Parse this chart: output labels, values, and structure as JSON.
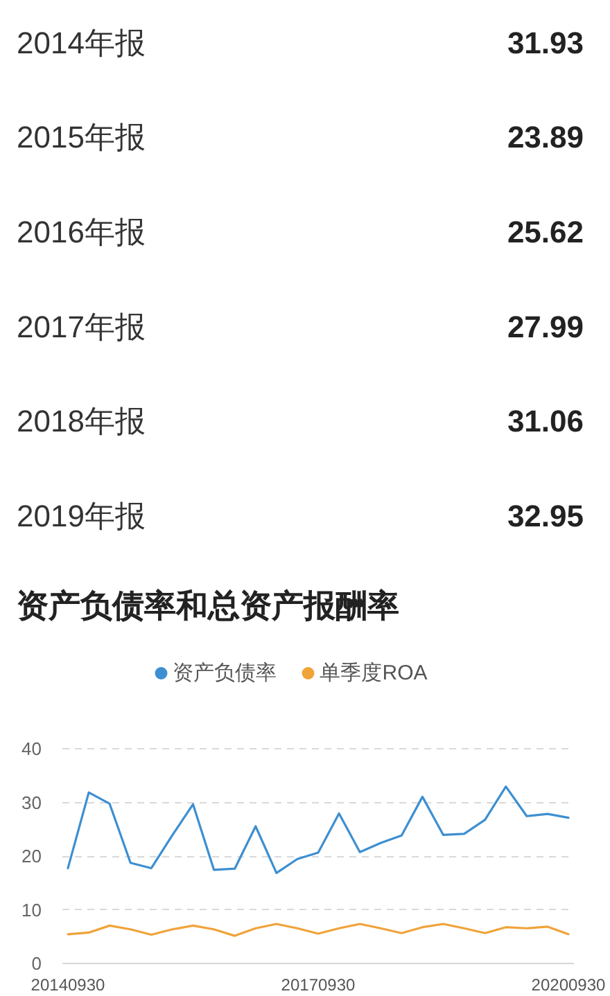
{
  "chart_data": {
    "type": "line",
    "title": "资产负债率和总资产报酬率",
    "annotations": [
      "2014年报",
      "31.93",
      "2015年报",
      "23.89",
      "2016年报",
      "25.62",
      "2017年报",
      "27.99",
      "2018年报",
      "31.06",
      "2019年报",
      "32.95"
    ],
    "categories": [
      "20140930",
      null,
      null,
      null,
      null,
      null,
      null,
      null,
      null,
      null,
      null,
      null,
      "20170930",
      null,
      null,
      null,
      null,
      null,
      null,
      null,
      null,
      null,
      null,
      null,
      "20200930"
    ],
    "series": [
      {
        "name": "资产负债率",
        "color": "#3d8fd1",
        "values": [
          17.8,
          31.9,
          29.8,
          18.8,
          17.8,
          23.9,
          29.7,
          17.5,
          17.7,
          25.6,
          16.9,
          19.5,
          20.7,
          28.0,
          20.8,
          22.5,
          23.9,
          31.1,
          24.0,
          24.2,
          26.8,
          33.0,
          27.5,
          27.9,
          27.2
        ]
      },
      {
        "name": "单季度ROA",
        "color": "#f0a33a",
        "values": [
          5.5,
          5.8,
          7.1,
          6.4,
          5.4,
          6.4,
          7.1,
          6.4,
          5.2,
          6.6,
          7.4,
          6.6,
          5.6,
          6.6,
          7.4,
          6.6,
          5.7,
          6.8,
          7.4,
          6.6,
          5.7,
          6.8,
          6.6,
          6.9,
          5.5
        ]
      }
    ],
    "ylim": [
      0,
      40
    ],
    "yticks": [
      0,
      10,
      20,
      30,
      40
    ],
    "grid": "y",
    "legend": "top"
  }
}
